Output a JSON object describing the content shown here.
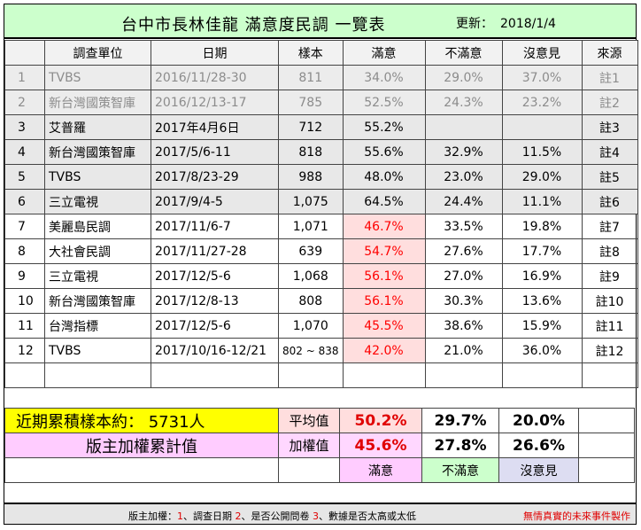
{
  "title": {
    "main": "台中市長林佳龍  滿意度民調 一覽表",
    "update_label": "更新：",
    "update_date": "2018/1/4"
  },
  "headers": [
    "",
    "調查單位",
    "日期",
    "樣本",
    "滿意",
    "不滿意",
    "沒意見",
    "來源"
  ],
  "rows": [
    {
      "no": "1",
      "org": "TVBS",
      "date": "2016/11/28-30",
      "sample": "811",
      "sat": "34.0%",
      "dis": "29.0%",
      "neu": "37.0%",
      "src": "註1",
      "style": "old"
    },
    {
      "no": "2",
      "org": "新台灣國策智庫",
      "date": "2016/12/13-17",
      "sample": "785",
      "sat": "52.5%",
      "dis": "24.3%",
      "neu": "23.2%",
      "src": "註2",
      "style": "old"
    },
    {
      "no": "3",
      "org": "艾普羅",
      "date": "2017年4月6日",
      "sample": "712",
      "sat": "55.2%",
      "dis": "",
      "neu": "",
      "src": "註3",
      "style": "gray"
    },
    {
      "no": "4",
      "org": "新台灣國策智庫",
      "date": "2017/5/6-11",
      "sample": "818",
      "sat": "55.6%",
      "dis": "32.9%",
      "neu": "11.5%",
      "src": "註4",
      "style": "gray"
    },
    {
      "no": "5",
      "org": "TVBS",
      "date": "2017/8/23-29",
      "sample": "988",
      "sat": "48.0%",
      "dis": "23.0%",
      "neu": "29.0%",
      "src": "註5",
      "style": "gray"
    },
    {
      "no": "6",
      "org": "三立電視",
      "date": "2017/9/4-5",
      "sample": "1,075",
      "sat": "64.5%",
      "dis": "24.4%",
      "neu": "11.1%",
      "src": "註6",
      "style": "gray"
    },
    {
      "no": "7",
      "org": "美麗島民調",
      "date": "2017/11/6-7",
      "sample": "1,071",
      "sat": "46.7%",
      "dis": "33.5%",
      "neu": "19.8%",
      "src": "註7",
      "style": "new"
    },
    {
      "no": "8",
      "org": "大社會民調",
      "date": "2017/11/27-28",
      "sample": "639",
      "sat": "54.7%",
      "dis": "27.6%",
      "neu": "17.7%",
      "src": "註8",
      "style": "new"
    },
    {
      "no": "9",
      "org": "三立電視",
      "date": "2017/12/5-6",
      "sample": "1,068",
      "sat": "56.1%",
      "dis": "27.0%",
      "neu": "16.9%",
      "src": "註9",
      "style": "new"
    },
    {
      "no": "10",
      "org": "新台灣國策智庫",
      "date": "2017/12/8-13",
      "sample": "808",
      "sat": "56.1%",
      "dis": "30.3%",
      "neu": "13.6%",
      "src": "註10",
      "style": "new"
    },
    {
      "no": "11",
      "org": "台灣指標",
      "date": "2017/12/5-6",
      "sample": "1,070",
      "sat": "45.5%",
      "dis": "38.6%",
      "neu": "15.9%",
      "src": "註11",
      "style": "new"
    },
    {
      "no": "12",
      "org": "TVBS",
      "date": "2017/10/16-12/21",
      "sample": "802 ~ 838",
      "sat": "42.0%",
      "dis": "21.0%",
      "neu": "36.0%",
      "src": "註12",
      "style": "new"
    }
  ],
  "summary": {
    "cumulative": "近期累積樣本約： 5731人",
    "avg_label": "平均值",
    "avg_sat": "50.2%",
    "avg_dis": "29.7%",
    "avg_neu": "20.0%",
    "weighted_title": "版主加權累計值",
    "wt_label": "加權值",
    "wt_sat": "45.6%",
    "wt_dis": "27.8%",
    "wt_neu": "26.6%"
  },
  "legend": {
    "sat": "滿意",
    "dis": "不滿意",
    "neu": "沒意見"
  },
  "footer": {
    "prefix": "版主加權：",
    "n1": "1",
    "t1": "、調查日期 ",
    "n2": "2",
    "t2": "、是否公開問卷 ",
    "n3": "3",
    "t3": "、數據是否太高或太低",
    "warning": "無情真實的未來事件製作"
  },
  "colors": {
    "title_bg": "#ccffcc",
    "highlight_bg": "#ffdede",
    "highlight_text": "#ff0000",
    "cumulative_bg": "#ffff00",
    "weighted_bg": "#ffccff"
  }
}
